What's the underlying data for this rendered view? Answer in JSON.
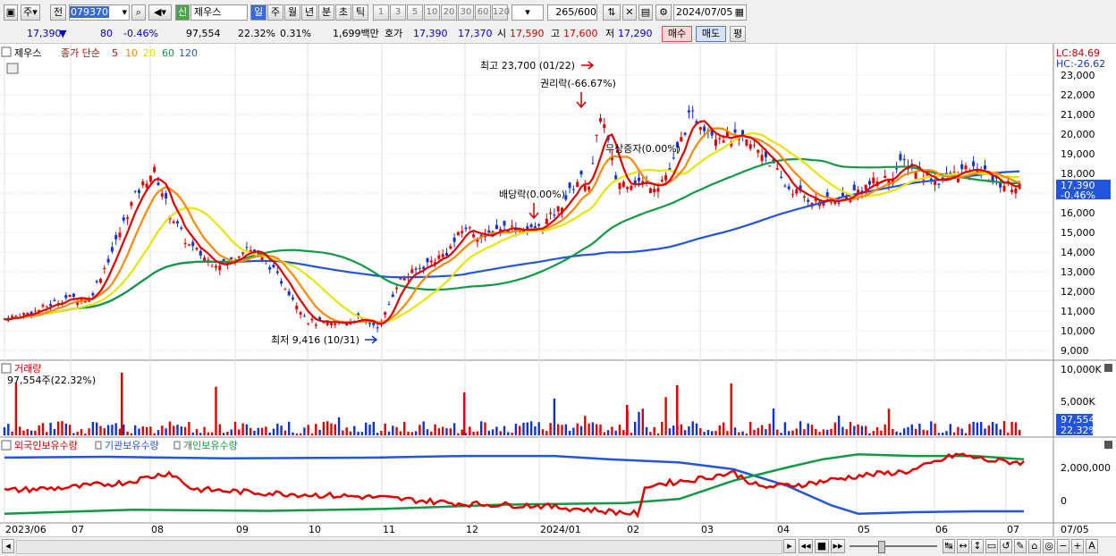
{
  "toolbar": {
    "mode1": "주",
    "mode2": "전",
    "stock_code": "079370",
    "badge": "신",
    "stock_name": "제우스",
    "periods": [
      "일",
      "주",
      "월",
      "년",
      "분",
      "초",
      "틱"
    ],
    "intervals": [
      "1",
      "3",
      "5",
      "10",
      "20",
      "30",
      "60",
      "120"
    ],
    "count": "265",
    "count_max": "/600",
    "date": "2024/07/05"
  },
  "quote": {
    "price": "17,390",
    "arrow": "▼",
    "change": "80",
    "change_pct": "-0.46%",
    "volume": "97,554",
    "volume_ratio": "22.32%",
    "turnover": "0.31%",
    "amount": "1,699백만",
    "hoga_label": "호가",
    "ask": "17,390",
    "bid": "17,370",
    "open_label": "시",
    "open": "17,590",
    "high_label": "고",
    "high": "17,600",
    "low_label": "저",
    "low": "17,290",
    "buy": "매수",
    "sell": "매도",
    "eval": "평"
  },
  "price_panel": {
    "name": "제우스",
    "legend_prefix": "종가 단순",
    "ma_periods": [
      "5",
      "10",
      "20",
      "60",
      "120"
    ],
    "ma_colors": [
      "#dd0000",
      "#ff8800",
      "#e6e600",
      "#119944",
      "#2255dd"
    ],
    "lc": "LC:84.69",
    "hc": "HC:-26.62",
    "y_ticks": [
      "23,000",
      "22,000",
      "21,000",
      "20,000",
      "19,000",
      "18,000",
      "17,000",
      "16,000",
      "15,000",
      "14,000",
      "13,000",
      "12,000",
      "11,000",
      "10,000",
      "9,000"
    ],
    "current_price": "17,390",
    "current_change": "-0.46%",
    "high_note": "최고 23,700 (01/22)",
    "low_note": "최저 9,416 (10/31)",
    "events": [
      "배당락(0.00%)",
      "권리락(-66.67%)",
      "무상증자(0.00%)"
    ]
  },
  "volume_panel": {
    "title": "거래량",
    "info": "97,554주(22.32%)",
    "y_ticks": [
      "10,000K",
      "5,000K"
    ],
    "current": "97,554",
    "current_pct": "22.32%"
  },
  "holding_panel": {
    "series": [
      "외국인보유수량",
      "기관보유수량",
      "개인보유수량"
    ],
    "y_ticks": [
      "2,000,000",
      "0"
    ]
  },
  "x_axis": {
    "labels": [
      "2023/06",
      "07",
      "08",
      "09",
      "10",
      "11",
      "12",
      "2024/01",
      "02",
      "03",
      "04",
      "05",
      "06",
      "07"
    ],
    "right_label": "07/05"
  },
  "colors": {
    "up": "#dd0000",
    "down": "#1133cc",
    "accent": "#2255dd",
    "foreign": "#dd0000",
    "inst": "#2255dd",
    "indiv": "#119944"
  }
}
